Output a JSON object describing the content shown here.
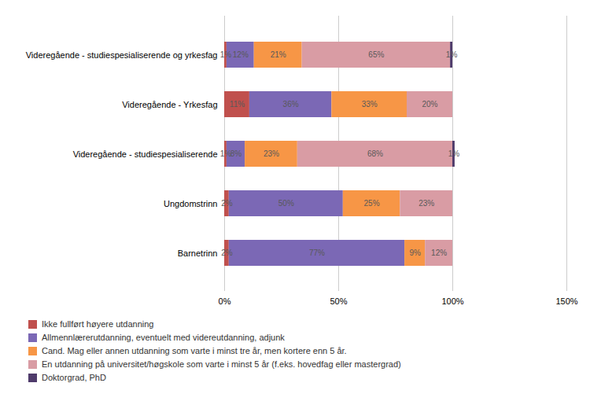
{
  "chart_data": {
    "type": "bar",
    "orientation": "horizontal",
    "stacked": true,
    "categories": [
      "Barnetrinn",
      "Ungdomstrinn",
      "Videregående - studiespesialiserende",
      "Videregående - Yrkesfag",
      "Videregående - studiespesialiserende og yrkesfag"
    ],
    "series": [
      {
        "name": "Ikke fullført høyere utdanning",
        "color": "#C0504D",
        "values": [
          2,
          2,
          1,
          11,
          1
        ],
        "value_labels": [
          "2%",
          "2%",
          "1%",
          "11%",
          "1%"
        ]
      },
      {
        "name": "Allmennlærerutdanning, eventuelt med videreutdanning, adjunk",
        "color": "#7B68B5",
        "values": [
          77,
          50,
          8,
          36,
          12
        ],
        "value_labels": [
          "77%",
          "50%",
          "8%",
          "36%",
          "12%"
        ]
      },
      {
        "name": "Cand. Mag eller annen utdanning som varte i minst tre år, men kortere enn 5 år.",
        "color": "#F79646",
        "values": [
          9,
          25,
          23,
          33,
          21
        ],
        "value_labels": [
          "9%",
          "25%",
          "23%",
          "33%",
          "21%"
        ]
      },
      {
        "name": "En utdanning på universitet/høgskole som varte i minst 5 år (f.eks. hovedfag eller mastergrad)",
        "color": "#D99CA4",
        "values": [
          12,
          23,
          68,
          20,
          65
        ],
        "value_labels": [
          "12%",
          "23%",
          "68%",
          "20%",
          "65%"
        ]
      },
      {
        "name": "Doktorgrad, PhD",
        "color": "#4F3B6B",
        "values": [
          0,
          0,
          1,
          0,
          1
        ],
        "value_labels": [
          null,
          null,
          "1%",
          null,
          "1%"
        ]
      }
    ],
    "xlim": [
      0,
      150
    ],
    "xticks": [
      {
        "value": 0,
        "label": "0%"
      },
      {
        "value": 50,
        "label": "50%"
      },
      {
        "value": 100,
        "label": "100%"
      },
      {
        "value": 150,
        "label": "150%"
      }
    ],
    "grid": true,
    "data_labels": true,
    "legend": "lower left"
  }
}
